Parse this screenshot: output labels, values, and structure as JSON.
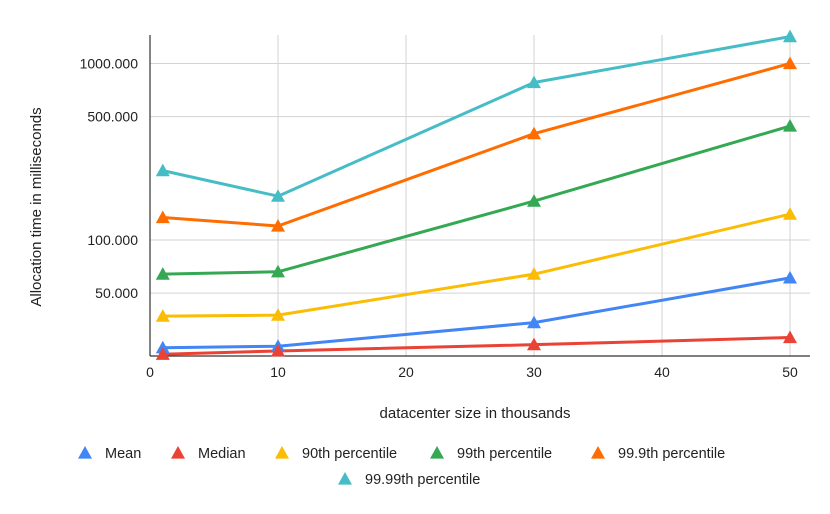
{
  "chart_data": {
    "type": "line",
    "title": "",
    "xlabel": "datacenter size in thousands",
    "ylabel": "Allocation time in milliseconds",
    "y_scale": "log",
    "xlim": [
      0,
      50
    ],
    "ylim": [
      22,
      1450
    ],
    "x_ticks": [
      0,
      10,
      20,
      30,
      40,
      50
    ],
    "x_tick_labels": [
      "0",
      "10",
      "20",
      "30",
      "40",
      "50"
    ],
    "y_ticks": [
      50,
      100,
      500,
      1000
    ],
    "y_tick_labels": [
      "50.000",
      "100.000",
      "500.000",
      "1000.000"
    ],
    "grid": true,
    "marker": "triangle",
    "legend_position": "bottom",
    "x": [
      1,
      10,
      30,
      50
    ],
    "series": [
      {
        "name": "Mean",
        "color": "#4285f4",
        "values": [
          24.5,
          25,
          34,
          61
        ]
      },
      {
        "name": "Median",
        "color": "#ea4335",
        "values": [
          22.5,
          23.5,
          25.5,
          28
        ]
      },
      {
        "name": "90th percentile",
        "color": "#fbbc04",
        "values": [
          37,
          37.5,
          64,
          140
        ]
      },
      {
        "name": "99th percentile",
        "color": "#34a853",
        "values": [
          64,
          66,
          166,
          442
        ]
      },
      {
        "name": "99.9th percentile",
        "color": "#ff6d01",
        "values": [
          134,
          120,
          400,
          1000
        ]
      },
      {
        "name": "99.99th percentile",
        "color": "#46bdc6",
        "values": [
          247,
          177,
          780,
          1420
        ]
      }
    ]
  }
}
